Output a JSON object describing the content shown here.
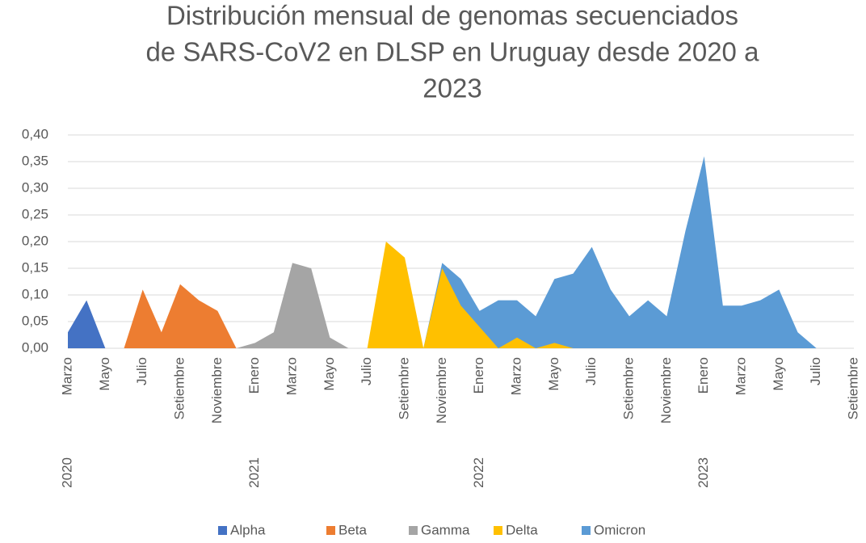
{
  "chart_data": {
    "type": "area",
    "title": [
      "Distribución mensual de genomas secuenciados",
      "de SARS-CoV2 en DLSP en Uruguay desde 2020 a",
      "2023"
    ],
    "categories": [
      "Marzo",
      null,
      "Mayo",
      null,
      "Julio",
      null,
      "Setiembre",
      null,
      "Noviembre",
      null,
      "Enero",
      null,
      "Marzo",
      null,
      "Mayo",
      null,
      "Julio",
      null,
      "Setiembre",
      null,
      "Noviembre",
      null,
      "Enero",
      null,
      "Marzo",
      null,
      "Mayo",
      null,
      "Julio",
      null,
      "Setiembre",
      null,
      "Noviembre",
      null,
      "Enero",
      null,
      "Marzo",
      null,
      "Mayo",
      null,
      "Julio",
      null,
      "Setiembre"
    ],
    "years": [
      "2020",
      null,
      null,
      null,
      null,
      null,
      null,
      null,
      null,
      null,
      "2021",
      null,
      null,
      null,
      null,
      null,
      null,
      null,
      null,
      null,
      null,
      null,
      "2022",
      null,
      null,
      null,
      null,
      null,
      null,
      null,
      null,
      null,
      null,
      null,
      "2023",
      null,
      null,
      null,
      null,
      null,
      null,
      null,
      null
    ],
    "series": [
      {
        "name": "Alpha",
        "color": "#4472c4",
        "values": [
          0.03,
          0.09,
          0,
          0,
          0,
          0,
          0,
          0,
          0,
          0,
          0,
          0,
          0,
          0,
          0,
          0,
          0,
          0,
          0,
          0,
          0,
          0,
          0,
          0,
          0,
          0,
          0,
          0,
          0,
          0,
          0,
          0,
          0,
          0,
          0,
          0,
          0,
          0,
          0,
          0,
          0,
          0,
          0
        ]
      },
      {
        "name": "Beta",
        "color": "#ed7d31",
        "values": [
          0,
          0,
          0,
          0,
          0.11,
          0.03,
          0.12,
          0.09,
          0.07,
          0,
          0,
          0,
          0,
          0,
          0,
          0,
          0,
          0,
          0,
          0,
          0,
          0,
          0,
          0,
          0,
          0,
          0,
          0,
          0,
          0,
          0,
          0,
          0,
          0,
          0,
          0,
          0,
          0,
          0,
          0,
          0,
          0,
          0
        ]
      },
      {
        "name": "Gamma",
        "color": "#a5a5a5",
        "values": [
          0,
          0,
          0,
          0,
          0,
          0,
          0,
          0,
          0,
          0,
          0.01,
          0.03,
          0.16,
          0.15,
          0.02,
          0,
          0,
          0,
          0,
          0,
          0,
          0,
          0,
          0,
          0,
          0,
          0,
          0,
          0,
          0,
          0,
          0,
          0,
          0,
          0,
          0,
          0,
          0,
          0,
          0,
          0,
          0,
          0
        ]
      },
      {
        "name": "Delta",
        "color": "#ffc000",
        "values": [
          0,
          0,
          0,
          0,
          0,
          0,
          0,
          0,
          0,
          0,
          0,
          0,
          0,
          0,
          0,
          0,
          0,
          0.2,
          0.17,
          0,
          0.15,
          0.08,
          0.04,
          0,
          0.02,
          0,
          0.01,
          0,
          0,
          0,
          0,
          0,
          0,
          0,
          0,
          0,
          0,
          0,
          0,
          0,
          0,
          0,
          0
        ]
      },
      {
        "name": "Omicron",
        "color": "#5b9bd5",
        "values": [
          0,
          0,
          0,
          0,
          0,
          0,
          0,
          0,
          0,
          0,
          0,
          0,
          0,
          0,
          0,
          0,
          0,
          0,
          0,
          0,
          0.16,
          0.13,
          0.07,
          0.09,
          0.09,
          0.06,
          0.13,
          0.14,
          0.19,
          0.11,
          0.06,
          0.09,
          0.06,
          0.22,
          0.36,
          0.08,
          0.08,
          0.09,
          0.11,
          0.03,
          0,
          0,
          0
        ]
      }
    ],
    "ylim": [
      0,
      0.4
    ],
    "yticks": [
      {
        "value": 0,
        "label": "0,00"
      },
      {
        "value": 0.05,
        "label": "0,05"
      },
      {
        "value": 0.1,
        "label": "0,10"
      },
      {
        "value": 0.15,
        "label": "0,15"
      },
      {
        "value": 0.2,
        "label": "0,20"
      },
      {
        "value": 0.25,
        "label": "0,25"
      },
      {
        "value": 0.3,
        "label": "0,30"
      },
      {
        "value": 0.35,
        "label": "0,35"
      },
      {
        "value": 0.4,
        "label": "0,40"
      }
    ],
    "grid": true,
    "legend": "bottom"
  }
}
